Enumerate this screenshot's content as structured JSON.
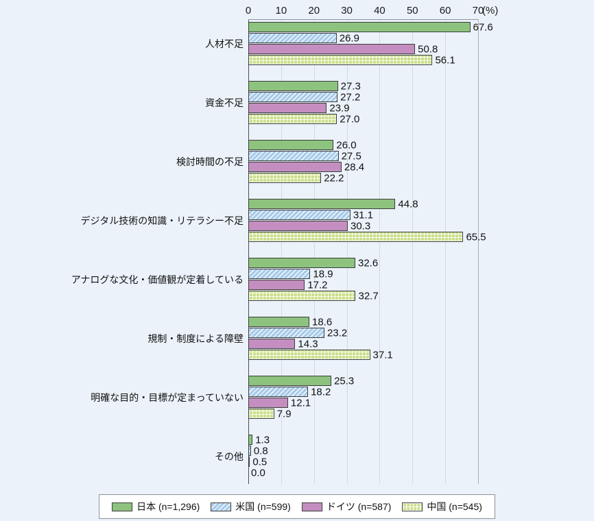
{
  "page": {
    "background_color": "#ebf2fa"
  },
  "chart_data": {
    "type": "bar",
    "orientation": "horizontal",
    "title": "",
    "axis": {
      "min": 0,
      "max": 70,
      "tick_interval": 10,
      "ticks": [
        "0",
        "10",
        "20",
        "30",
        "40",
        "50",
        "60",
        "70"
      ],
      "unit_label": "(%)",
      "grid": true
    },
    "categories": [
      "人材不足",
      "資金不足",
      "検討時間の不足",
      "デジタル技術の知識・リテラシー不足",
      "アナログな文化・価値観が定着している",
      "規制・制度による障壁",
      "明確な目的・目標が定まっていない",
      "その他"
    ],
    "series": [
      {
        "name": "日本",
        "legend_label": "日本 (n=1,296)",
        "color": "#8dc37e",
        "pattern": "solid",
        "values": [
          67.6,
          27.3,
          26.0,
          44.8,
          32.6,
          18.6,
          25.3,
          1.3
        ]
      },
      {
        "name": "米国",
        "legend_label": "米国 (n=599)",
        "color": "#a8cbe9",
        "pattern": "diagonal-stripes",
        "values": [
          26.9,
          27.2,
          27.5,
          31.1,
          18.9,
          23.2,
          18.2,
          0.8
        ]
      },
      {
        "name": "ドイツ",
        "legend_label": "ドイツ (n=587)",
        "color": "#c48fc0",
        "pattern": "solid",
        "values": [
          50.8,
          23.9,
          28.4,
          30.3,
          17.2,
          14.3,
          12.1,
          0.5
        ]
      },
      {
        "name": "中国",
        "legend_label": "中国 (n=545)",
        "color": "#cbdf8a",
        "pattern": "crosshatch",
        "values": [
          56.1,
          27.0,
          22.2,
          65.5,
          32.7,
          37.1,
          7.9,
          0.0
        ]
      }
    ],
    "value_decimals": 1,
    "legend_position": "bottom",
    "bar_border_color": "#3c3c3c"
  }
}
